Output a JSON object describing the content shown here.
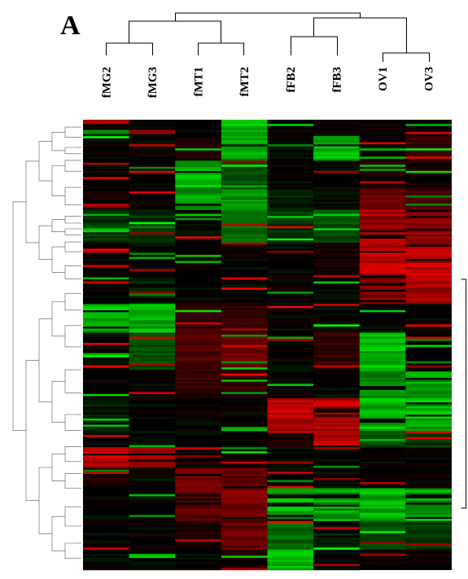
{
  "panel_label": "A",
  "chart_data": {
    "type": "heatmap",
    "columns": [
      "fMG2",
      "fMG3",
      "fMT1",
      "fMT2",
      "fFB2",
      "fFB3",
      "OV1",
      "OV3"
    ],
    "color_scale": {
      "low": "#00ff00",
      "mid": "#000000",
      "high": "#ff0000"
    },
    "value_range": [
      -1,
      1
    ],
    "column_clusters": [
      {
        "members": [
          "fMG2",
          "fMG3"
        ]
      },
      {
        "members": [
          "fMT1",
          "fMT2"
        ]
      },
      {
        "members": [
          "fFB2",
          "fFB3"
        ]
      },
      {
        "members": [
          "OV1",
          "OV3"
        ]
      },
      {
        "members": [
          "fMG2",
          "fMG3",
          "fMT1",
          "fMT2"
        ]
      },
      {
        "members": [
          "fFB2",
          "fFB3",
          "OV1",
          "OV3"
        ]
      },
      {
        "members": [
          "fMG2",
          "fMG3",
          "fMT1",
          "fMT2",
          "fFB2",
          "fFB3",
          "OV1",
          "OV3"
        ]
      }
    ],
    "row_blocks": [
      {
        "rows": 8,
        "values": [
          0.0,
          0.0,
          0.0,
          -0.9,
          0.0,
          0.0,
          0.0,
          0.0
        ]
      },
      {
        "rows": 12,
        "values": [
          0.0,
          0.0,
          0.1,
          -0.8,
          0.0,
          -0.9,
          0.0,
          0.2
        ]
      },
      {
        "rows": 14,
        "values": [
          0.0,
          0.0,
          -0.9,
          -0.3,
          0.0,
          0.0,
          0.1,
          0.1
        ]
      },
      {
        "rows": 10,
        "values": [
          0.1,
          0.0,
          -0.8,
          -0.7,
          -0.1,
          0.0,
          0.4,
          0.3
        ]
      },
      {
        "rows": 16,
        "values": [
          -0.2,
          -0.2,
          0.0,
          -0.4,
          -0.2,
          -0.3,
          0.8,
          0.7
        ]
      },
      {
        "rows": 16,
        "values": [
          0.0,
          0.0,
          0.0,
          0.0,
          0.0,
          0.1,
          0.9,
          0.9
        ]
      },
      {
        "rows": 14,
        "values": [
          0.0,
          -0.1,
          0.0,
          0.0,
          0.0,
          0.0,
          0.6,
          0.8
        ]
      },
      {
        "rows": 14,
        "values": [
          -0.9,
          -0.9,
          0.2,
          0.2,
          0.0,
          0.0,
          0.0,
          0.0
        ]
      },
      {
        "rows": 18,
        "values": [
          0.0,
          -0.3,
          0.3,
          0.4,
          0.0,
          0.2,
          -0.9,
          0.0
        ]
      },
      {
        "rows": 14,
        "values": [
          0.0,
          0.0,
          0.2,
          0.2,
          0.0,
          0.0,
          -0.7,
          -0.8
        ]
      },
      {
        "rows": 16,
        "values": [
          -0.1,
          0.0,
          0.0,
          0.0,
          0.9,
          0.9,
          -0.9,
          -0.9
        ]
      },
      {
        "rows": 8,
        "values": [
          0.0,
          0.0,
          0.0,
          0.0,
          0.1,
          0.9,
          -0.3,
          -0.2
        ]
      },
      {
        "rows": 10,
        "values": [
          0.9,
          0.9,
          0.1,
          0.0,
          0.0,
          0.0,
          0.0,
          0.0
        ]
      },
      {
        "rows": 10,
        "values": [
          0.1,
          0.0,
          0.6,
          0.5,
          0.0,
          0.0,
          0.0,
          0.0
        ]
      },
      {
        "rows": 16,
        "values": [
          0.0,
          0.0,
          0.5,
          0.6,
          -0.9,
          -0.8,
          -0.9,
          -0.9
        ]
      },
      {
        "rows": 14,
        "values": [
          0.0,
          0.0,
          0.1,
          0.5,
          -0.4,
          -0.1,
          -0.3,
          -0.2
        ]
      },
      {
        "rows": 10,
        "values": [
          0.0,
          0.0,
          0.0,
          0.1,
          -0.9,
          0.0,
          0.0,
          0.0
        ]
      }
    ]
  }
}
